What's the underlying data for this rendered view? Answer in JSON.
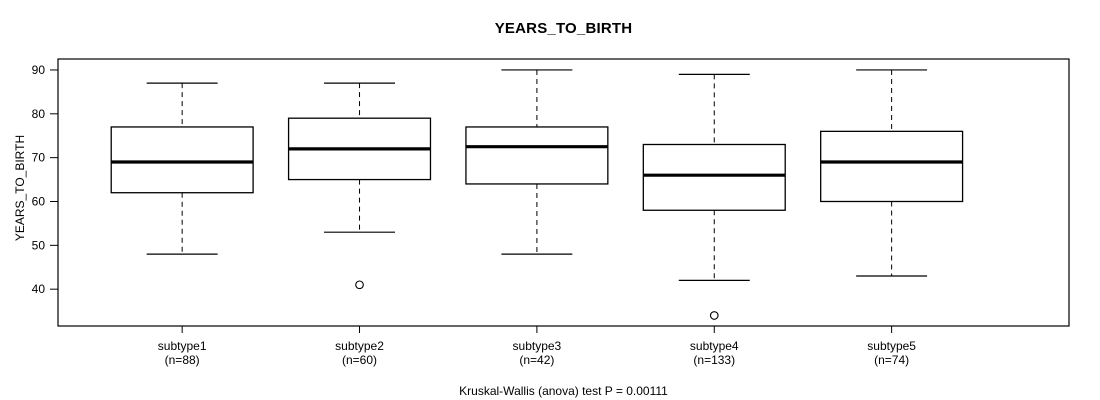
{
  "chart_data": {
    "type": "boxplot",
    "title": "YEARS_TO_BIRTH",
    "ylabel": "YEARS_TO_BIRTH",
    "xlabel": "",
    "caption": "Kruskal-Wallis (anova) test P = 0.00111",
    "categories": [
      "subtype1",
      "subtype2",
      "subtype3",
      "subtype4",
      "subtype5"
    ],
    "category_sublabels": [
      "(n=88)",
      "(n=60)",
      "(n=42)",
      "(n=133)",
      "(n=74)"
    ],
    "groups": [
      {
        "label": "subtype1",
        "n": 88,
        "whisker_low": 48,
        "q1": 62,
        "median": 69,
        "q3": 77,
        "whisker_high": 87,
        "outliers": []
      },
      {
        "label": "subtype2",
        "n": 60,
        "whisker_low": 53,
        "q1": 65,
        "median": 72,
        "q3": 79,
        "whisker_high": 87,
        "outliers": [
          41
        ]
      },
      {
        "label": "subtype3",
        "n": 42,
        "whisker_low": 48,
        "q1": 64,
        "median": 72.5,
        "q3": 77,
        "whisker_high": 90,
        "outliers": []
      },
      {
        "label": "subtype4",
        "n": 133,
        "whisker_low": 42,
        "q1": 58,
        "median": 66,
        "q3": 73,
        "whisker_high": 89,
        "outliers": [
          34
        ]
      },
      {
        "label": "subtype5",
        "n": 74,
        "whisker_low": 43,
        "q1": 60,
        "median": 69,
        "q3": 76,
        "whisker_high": 90,
        "outliers": []
      }
    ],
    "y_ticks": [
      40,
      50,
      60,
      70,
      80,
      90
    ],
    "ylim": [
      31.6,
      92.5
    ],
    "grid": false,
    "legend": null,
    "colors": {
      "line": "#000000",
      "background": "#ffffff",
      "text": "#000000"
    }
  }
}
